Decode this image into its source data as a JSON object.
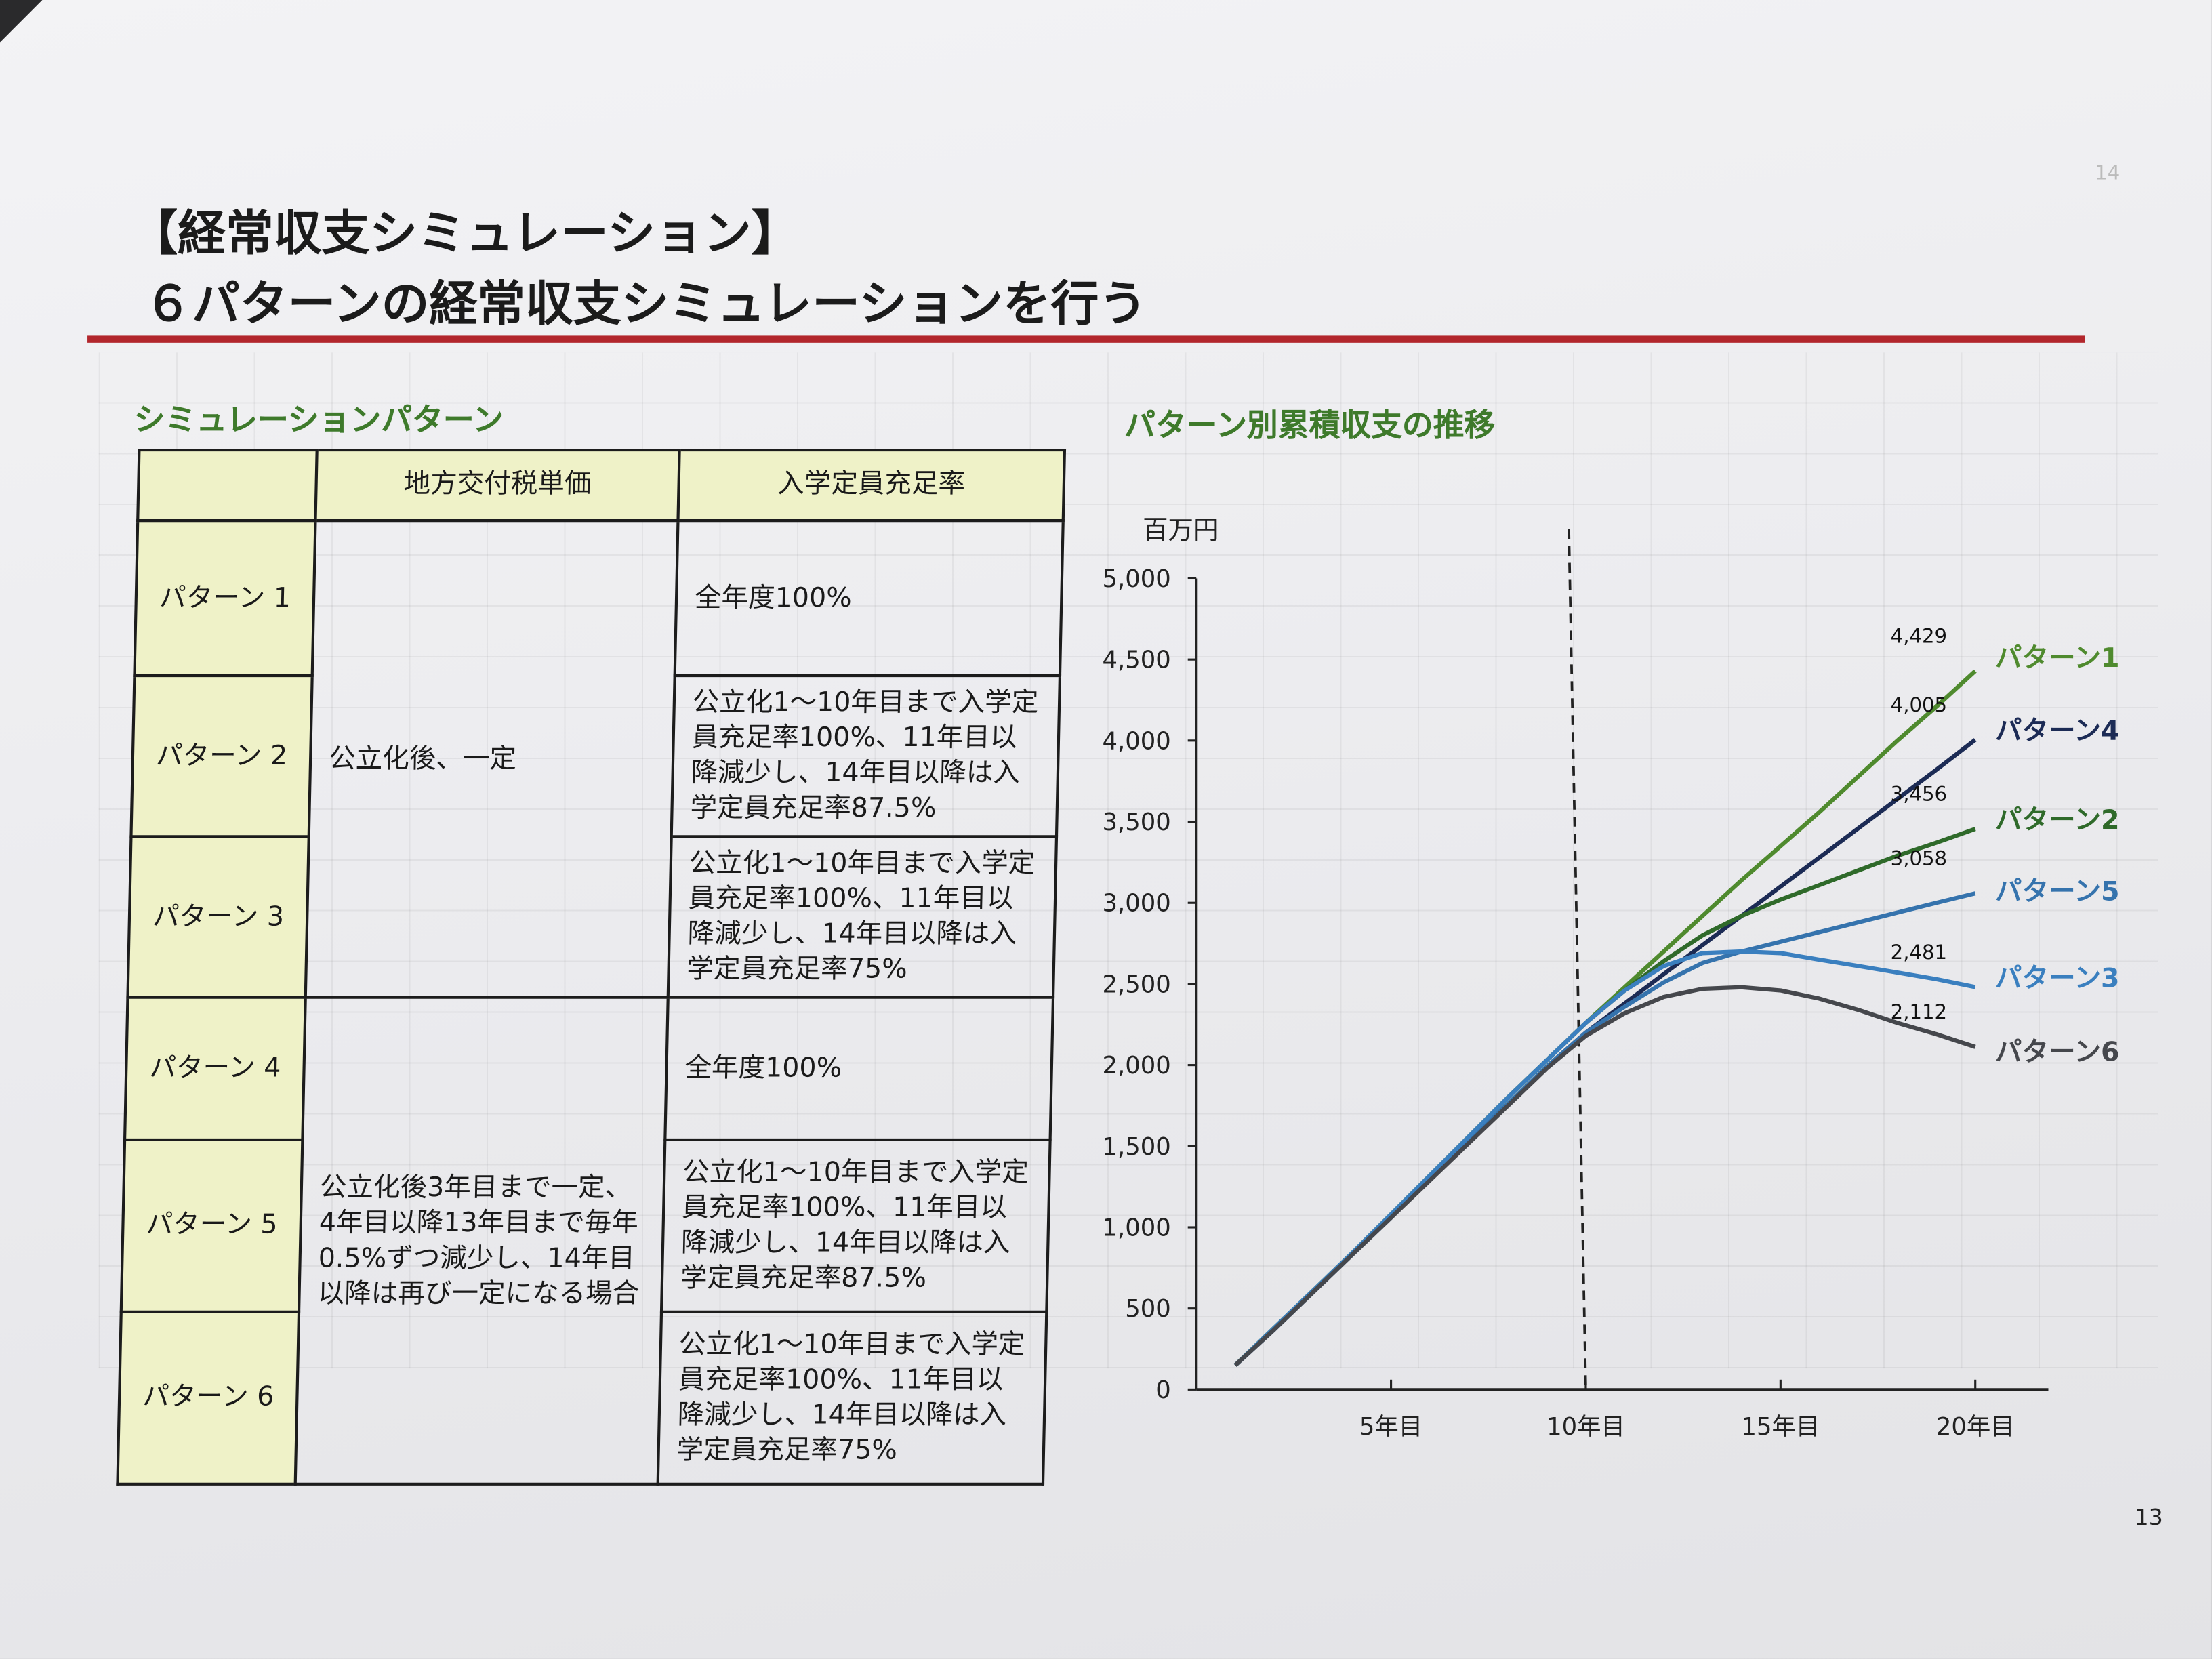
{
  "header": {
    "title_line1": "【経常収支シミュレーション】",
    "title_line2": "６パターンの経常収支シミュレーションを行う"
  },
  "table": {
    "heading": "シミュレーションパターン",
    "columns": [
      "",
      "地方交付税単価",
      "入学定員充足率"
    ],
    "tax_groups": [
      "公立化後、一定",
      "公立化後3年目まで一定、4年目以降13年目まで毎年0.5%ずつ減少し、14年目以降は再び一定になる場合"
    ],
    "rows": [
      {
        "pattern": "パターン 1",
        "rate": "全年度100%"
      },
      {
        "pattern": "パターン 2",
        "rate": "公立化1～10年目まで入学定員充足率100%、11年目以降減少し、14年目以降は入学定員充足率87.5%"
      },
      {
        "pattern": "パターン 3",
        "rate": "公立化1～10年目まで入学定員充足率100%、11年目以降減少し、14年目以降は入学定員充足率75%"
      },
      {
        "pattern": "パターン 4",
        "rate": "全年度100%"
      },
      {
        "pattern": "パターン 5",
        "rate": "公立化1～10年目まで入学定員充足率100%、11年目以降減少し、14年目以降は入学定員充足率87.5%"
      },
      {
        "pattern": "パターン 6",
        "rate": "公立化1～10年目まで入学定員充足率100%、11年目以降減少し、14年目以降は入学定員充足率75%"
      }
    ]
  },
  "chart_data": {
    "type": "line",
    "title": "パターン別累積収支の推移",
    "ylabel": "百万円",
    "xlabel": "",
    "ylim": [
      0,
      5000
    ],
    "xlim": [
      0,
      21
    ],
    "yticks": [
      0,
      500,
      1000,
      1500,
      2000,
      2500,
      3000,
      3500,
      4000,
      4500,
      5000
    ],
    "ytick_labels": [
      "0",
      "500",
      "1,000",
      "1,500",
      "2,000",
      "2,500",
      "3,000",
      "3,500",
      "4,000",
      "4,500",
      "5,000"
    ],
    "xticks": [
      5,
      10,
      15,
      20
    ],
    "xtick_labels": [
      "5年目",
      "10年目",
      "15年目",
      "20年目"
    ],
    "reference_line_x": 10,
    "x": [
      1,
      2,
      3,
      4,
      5,
      6,
      7,
      8,
      9,
      10,
      11,
      12,
      13,
      14,
      15,
      16,
      17,
      18,
      19,
      20
    ],
    "series": [
      {
        "name": "パターン1",
        "color": "#4f8a2e",
        "end_label": "4,429",
        "values": [
          150,
          380,
          610,
          840,
          1080,
          1320,
          1560,
          1800,
          2030,
          2260,
          2480,
          2700,
          2920,
          3140,
          3350,
          3560,
          3780,
          4000,
          4210,
          4429
        ]
      },
      {
        "name": "パターン4",
        "color": "#1c2b55",
        "end_label": "4,005",
        "values": [
          150,
          370,
          600,
          830,
          1060,
          1300,
          1530,
          1760,
          1990,
          2200,
          2380,
          2560,
          2740,
          2920,
          3100,
          3280,
          3460,
          3640,
          3820,
          4005
        ]
      },
      {
        "name": "パターン2",
        "color": "#2f6a2a",
        "end_label": "3,456",
        "values": [
          150,
          380,
          610,
          840,
          1080,
          1320,
          1560,
          1800,
          2030,
          2260,
          2460,
          2640,
          2800,
          2920,
          3020,
          3110,
          3200,
          3290,
          3370,
          3456
        ]
      },
      {
        "name": "パターン5",
        "color": "#3573ad",
        "end_label": "3,058",
        "values": [
          150,
          370,
          600,
          830,
          1060,
          1300,
          1530,
          1760,
          1990,
          2200,
          2360,
          2510,
          2630,
          2700,
          2760,
          2820,
          2880,
          2940,
          3000,
          3058
        ]
      },
      {
        "name": "パターン3",
        "color": "#3a7fbf",
        "end_label": "2,481",
        "values": [
          150,
          380,
          610,
          840,
          1080,
          1320,
          1560,
          1800,
          2030,
          2260,
          2460,
          2610,
          2690,
          2700,
          2690,
          2650,
          2610,
          2570,
          2530,
          2481
        ]
      },
      {
        "name": "パターン6",
        "color": "#45474c",
        "end_label": "2,112",
        "values": [
          150,
          370,
          600,
          830,
          1060,
          1290,
          1520,
          1750,
          1980,
          2180,
          2320,
          2420,
          2470,
          2480,
          2460,
          2410,
          2340,
          2260,
          2190,
          2112
        ]
      }
    ]
  },
  "footer": {
    "page_number": "13",
    "faint_page_number": "14"
  }
}
